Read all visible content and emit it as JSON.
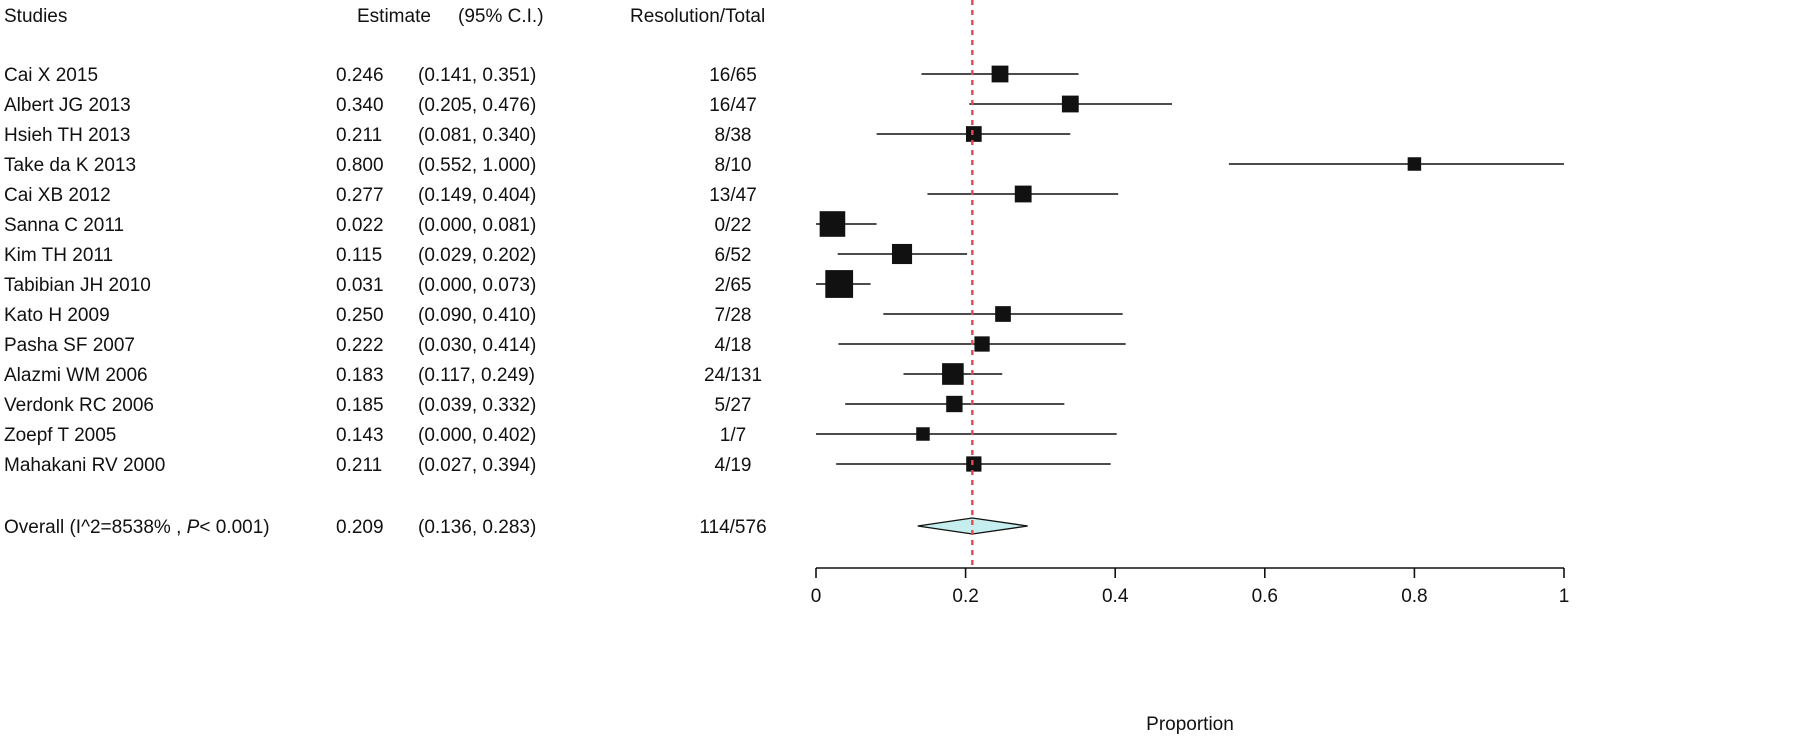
{
  "chart_data": {
    "type": "forest",
    "columns": {
      "studies": "Studies",
      "estimate": "Estimate",
      "ci": "(95% C.I.)",
      "resolution": "Resolution/Total"
    },
    "studies": [
      {
        "name": "Cai X 2015",
        "estimate": 0.246,
        "lower": 0.141,
        "upper": 0.351,
        "est_text": "0.246",
        "ci_text": "(0.141, 0.351)",
        "resolution": "16/65",
        "weight": 0.4
      },
      {
        "name": "Albert JG 2013",
        "estimate": 0.34,
        "lower": 0.205,
        "upper": 0.476,
        "est_text": "0.340",
        "ci_text": "(0.205, 0.476)",
        "resolution": "16/47",
        "weight": 0.4
      },
      {
        "name": "Hsieh TH 2013",
        "estimate": 0.211,
        "lower": 0.081,
        "upper": 0.34,
        "est_text": "0.211",
        "ci_text": "(0.081, 0.340)",
        "resolution": "8/38",
        "weight": 0.35
      },
      {
        "name": "Take da K 2013",
        "estimate": 0.8,
        "lower": 0.552,
        "upper": 1.0,
        "est_text": "0.800",
        "ci_text": "(0.552, 1.000)",
        "resolution": "8/10",
        "weight": 0.25
      },
      {
        "name": "Cai XB 2012",
        "estimate": 0.277,
        "lower": 0.149,
        "upper": 0.404,
        "est_text": "0.277",
        "ci_text": "(0.149, 0.404)",
        "resolution": "13/47",
        "weight": 0.4
      },
      {
        "name": "Sanna C 2011",
        "estimate": 0.022,
        "lower": 0.0,
        "upper": 0.081,
        "est_text": "0.022",
        "ci_text": "(0.000, 0.081)",
        "resolution": "0/22",
        "weight": 0.8
      },
      {
        "name": "Kim TH 2011",
        "estimate": 0.115,
        "lower": 0.029,
        "upper": 0.202,
        "est_text": "0.115",
        "ci_text": "(0.029, 0.202)",
        "resolution": "6/52",
        "weight": 0.55
      },
      {
        "name": "Tabibian JH 2010",
        "estimate": 0.031,
        "lower": 0.0,
        "upper": 0.073,
        "est_text": "0.031",
        "ci_text": "(0.000, 0.073)",
        "resolution": "2/65",
        "weight": 0.9
      },
      {
        "name": "Kato H 2009",
        "estimate": 0.25,
        "lower": 0.09,
        "upper": 0.41,
        "est_text": "0.250",
        "ci_text": "(0.090, 0.410)",
        "resolution": "7/28",
        "weight": 0.35
      },
      {
        "name": "Pasha SF 2007",
        "estimate": 0.222,
        "lower": 0.03,
        "upper": 0.414,
        "est_text": "0.222",
        "ci_text": "(0.030, 0.414)",
        "resolution": "4/18",
        "weight": 0.33
      },
      {
        "name": "Alazmi WM 2006",
        "estimate": 0.183,
        "lower": 0.117,
        "upper": 0.249,
        "est_text": "0.183",
        "ci_text": "(0.117, 0.249)",
        "resolution": "24/131",
        "weight": 0.62
      },
      {
        "name": "Verdonk RC 2006",
        "estimate": 0.185,
        "lower": 0.039,
        "upper": 0.332,
        "est_text": "0.185",
        "ci_text": "(0.039, 0.332)",
        "resolution": "5/27",
        "weight": 0.38
      },
      {
        "name": "Zoepf T 2005",
        "estimate": 0.143,
        "lower": 0.0,
        "upper": 0.402,
        "est_text": "0.143",
        "ci_text": "(0.000, 0.402)",
        "resolution": "1/7",
        "weight": 0.25
      },
      {
        "name": "Mahakani RV 2000",
        "estimate": 0.211,
        "lower": 0.027,
        "upper": 0.394,
        "est_text": "0.211",
        "ci_text": "(0.027, 0.394)",
        "resolution": "4/19",
        "weight": 0.33
      }
    ],
    "overall": {
      "label_prefix": "Overall (I^2=8538% , ",
      "label_p": "P",
      "label_suffix": "< 0.001)",
      "estimate": 0.209,
      "lower": 0.136,
      "upper": 0.283,
      "est_text": "0.209",
      "ci_text": "(0.136, 0.283)",
      "resolution": "114/576",
      "color": "#c6eeee"
    },
    "reference_line": {
      "value": 0.209,
      "color": "#e8474c"
    },
    "xlabel": "Proportion",
    "xlim": [
      0,
      1
    ],
    "xticks": [
      0,
      0.2,
      0.4,
      0.6,
      0.8,
      1
    ],
    "xtick_labels": [
      "0",
      "0.2",
      "0.4",
      "0.6",
      "0.8",
      "1"
    ]
  }
}
